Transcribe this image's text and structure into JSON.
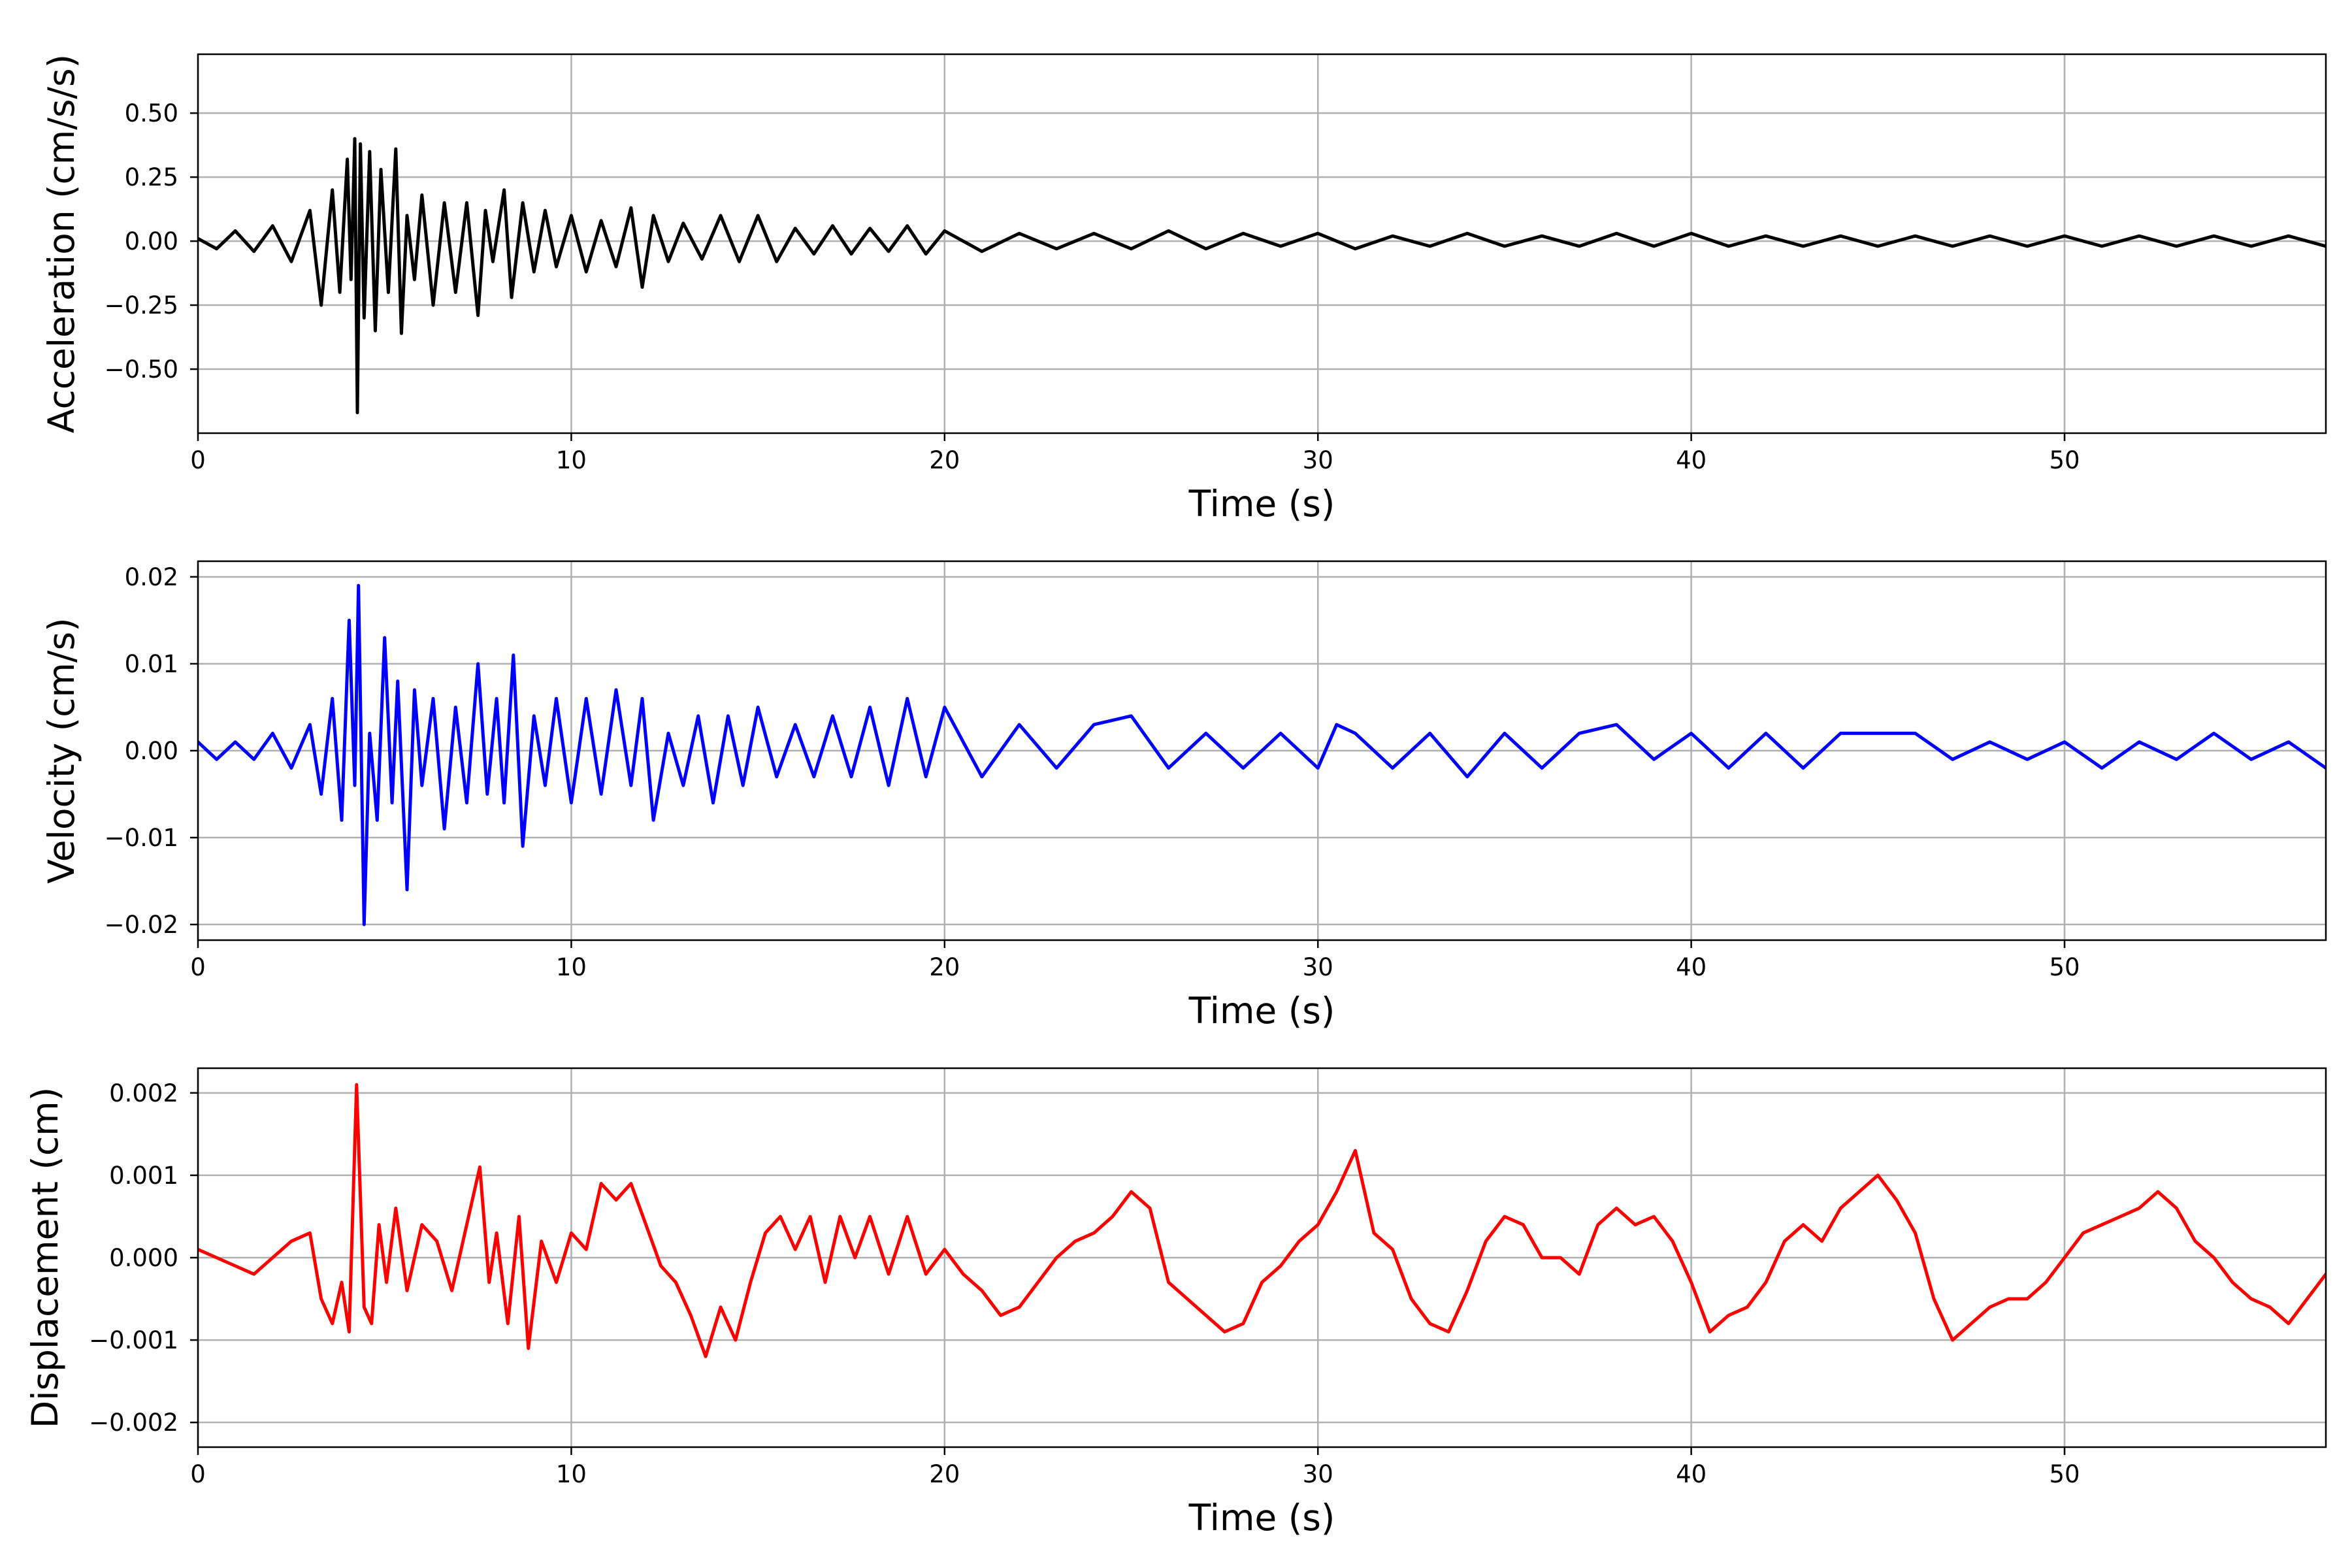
{
  "chart_data": [
    {
      "type": "line",
      "xlabel": "Time (s)",
      "ylabel": "Acceleration (cm/s/s)",
      "xlim": [
        0,
        57
      ],
      "ylim": [
        -0.75,
        0.73
      ],
      "xticks": [
        "0",
        "10",
        "20",
        "30",
        "40",
        "50"
      ],
      "yticks": [
        "0.50",
        "0.25",
        "0.00",
        "−0.25",
        "−0.50"
      ],
      "ytick_values": [
        0.5,
        0.25,
        0.0,
        -0.25,
        -0.5
      ],
      "grid": true,
      "color": "#000000",
      "series": [
        {
          "x": [
            0,
            0.5,
            1,
            1.5,
            2,
            2.5,
            3,
            3.3,
            3.6,
            3.8,
            4.0,
            4.1,
            4.2,
            4.27,
            4.35,
            4.45,
            4.6,
            4.75,
            4.9,
            5.1,
            5.3,
            5.45,
            5.6,
            5.8,
            6.0,
            6.3,
            6.6,
            6.9,
            7.2,
            7.5,
            7.7,
            7.9,
            8.2,
            8.4,
            8.7,
            9.0,
            9.3,
            9.6,
            10.0,
            10.4,
            10.8,
            11.2,
            11.6,
            11.9,
            12.2,
            12.6,
            13.0,
            13.5,
            14.0,
            14.5,
            15.0,
            15.5,
            16.0,
            16.5,
            17.0,
            17.5,
            18.0,
            18.5,
            19.0,
            19.5,
            20.0,
            21,
            22,
            23,
            24,
            25,
            26,
            27,
            28,
            29,
            30,
            31,
            32,
            33,
            34,
            35,
            36,
            37,
            38,
            39,
            40,
            41,
            42,
            43,
            44,
            45,
            46,
            47,
            48,
            49,
            50,
            51,
            52,
            53,
            54,
            55,
            56,
            57
          ],
          "y": [
            0.01,
            -0.03,
            0.04,
            -0.04,
            0.06,
            -0.08,
            0.12,
            -0.25,
            0.2,
            -0.2,
            0.32,
            -0.15,
            0.4,
            -0.67,
            0.38,
            -0.3,
            0.35,
            -0.35,
            0.28,
            -0.2,
            0.36,
            -0.36,
            0.1,
            -0.15,
            0.18,
            -0.25,
            0.15,
            -0.2,
            0.15,
            -0.29,
            0.12,
            -0.08,
            0.2,
            -0.22,
            0.15,
            -0.12,
            0.12,
            -0.1,
            0.1,
            -0.12,
            0.08,
            -0.1,
            0.13,
            -0.18,
            0.1,
            -0.08,
            0.07,
            -0.07,
            0.1,
            -0.08,
            0.1,
            -0.08,
            0.05,
            -0.05,
            0.06,
            -0.05,
            0.05,
            -0.04,
            0.06,
            -0.05,
            0.04,
            -0.04,
            0.03,
            -0.03,
            0.03,
            -0.03,
            0.04,
            -0.03,
            0.03,
            -0.02,
            0.03,
            -0.03,
            0.02,
            -0.02,
            0.03,
            -0.02,
            0.02,
            -0.02,
            0.03,
            -0.02,
            0.03,
            -0.02,
            0.02,
            -0.02,
            0.02,
            -0.02,
            0.02,
            -0.02,
            0.02,
            -0.02,
            0.02,
            -0.02,
            0.02,
            -0.02,
            0.02,
            -0.02,
            0.02,
            -0.02
          ]
        }
      ]
    },
    {
      "type": "line",
      "xlabel": "Time (s)",
      "ylabel": "Velocity (cm/s)",
      "xlim": [
        0,
        57
      ],
      "ylim": [
        -0.0218,
        0.0218
      ],
      "xticks": [
        "0",
        "10",
        "20",
        "30",
        "40",
        "50"
      ],
      "yticks": [
        "0.02",
        "0.01",
        "0.00",
        "−0.01",
        "−0.02"
      ],
      "ytick_values": [
        0.02,
        0.01,
        0.0,
        -0.01,
        -0.02
      ],
      "grid": true,
      "color": "#0000ff",
      "series": [
        {
          "x": [
            0,
            0.5,
            1,
            1.5,
            2,
            2.5,
            3,
            3.3,
            3.6,
            3.85,
            4.05,
            4.2,
            4.3,
            4.45,
            4.6,
            4.8,
            5.0,
            5.2,
            5.35,
            5.6,
            5.8,
            6.0,
            6.3,
            6.6,
            6.9,
            7.2,
            7.5,
            7.75,
            8.0,
            8.2,
            8.45,
            8.7,
            9.0,
            9.3,
            9.6,
            10.0,
            10.4,
            10.8,
            11.2,
            11.6,
            11.9,
            12.2,
            12.6,
            13.0,
            13.4,
            13.8,
            14.2,
            14.6,
            15.0,
            15.5,
            16.0,
            16.5,
            17.0,
            17.5,
            18.0,
            18.5,
            19.0,
            19.5,
            20.0,
            21,
            22,
            23,
            24,
            25,
            26,
            27,
            28,
            29,
            30,
            30.5,
            31,
            32,
            33,
            34,
            35,
            36,
            37,
            38,
            39,
            40,
            41,
            42,
            43,
            44,
            45,
            46,
            47,
            48,
            49,
            50,
            51,
            52,
            53,
            54,
            55,
            56,
            57
          ],
          "y": [
            0.001,
            -0.001,
            0.001,
            -0.001,
            0.002,
            -0.002,
            0.003,
            -0.005,
            0.006,
            -0.008,
            0.015,
            -0.004,
            0.019,
            -0.02,
            0.002,
            -0.008,
            0.013,
            -0.006,
            0.008,
            -0.016,
            0.007,
            -0.004,
            0.006,
            -0.009,
            0.005,
            -0.006,
            0.01,
            -0.005,
            0.006,
            -0.006,
            0.011,
            -0.011,
            0.004,
            -0.004,
            0.006,
            -0.006,
            0.006,
            -0.005,
            0.007,
            -0.004,
            0.006,
            -0.008,
            0.002,
            -0.004,
            0.004,
            -0.006,
            0.004,
            -0.004,
            0.005,
            -0.003,
            0.003,
            -0.003,
            0.004,
            -0.003,
            0.005,
            -0.004,
            0.006,
            -0.003,
            0.005,
            -0.003,
            0.003,
            -0.002,
            0.003,
            0.004,
            -0.002,
            0.002,
            -0.002,
            0.002,
            -0.002,
            0.003,
            0.002,
            -0.002,
            0.002,
            -0.003,
            0.002,
            -0.002,
            0.002,
            0.003,
            -0.001,
            0.002,
            -0.002,
            0.002,
            -0.002,
            0.002,
            0.002,
            0.002,
            -0.001,
            0.001,
            -0.001,
            0.001,
            -0.002,
            0.001,
            -0.001,
            0.002,
            -0.001,
            0.001,
            -0.002
          ]
        }
      ]
    },
    {
      "type": "line",
      "xlabel": "Time (s)",
      "ylabel": "Displacement (cm)",
      "xlim": [
        0,
        57
      ],
      "ylim": [
        -0.0023,
        0.0023
      ],
      "xticks": [
        "0",
        "10",
        "20",
        "30",
        "40",
        "50"
      ],
      "yticks": [
        "0.002",
        "0.001",
        "0.000",
        "−0.001",
        "−0.002"
      ],
      "ytick_values": [
        0.002,
        0.001,
        0.0,
        -0.001,
        -0.002
      ],
      "grid": true,
      "color": "#ff0000",
      "series": [
        {
          "x": [
            0,
            0.5,
            1,
            1.5,
            2,
            2.5,
            3,
            3.3,
            3.6,
            3.85,
            4.05,
            4.25,
            4.45,
            4.65,
            4.85,
            5.05,
            5.3,
            5.6,
            6.0,
            6.4,
            6.8,
            7.2,
            7.55,
            7.8,
            8.0,
            8.3,
            8.6,
            8.85,
            9.2,
            9.6,
            10.0,
            10.4,
            10.8,
            11.2,
            11.6,
            12.0,
            12.4,
            12.8,
            13.2,
            13.6,
            14.0,
            14.4,
            14.8,
            15.2,
            15.6,
            16.0,
            16.4,
            16.8,
            17.2,
            17.6,
            18.0,
            18.5,
            19.0,
            19.5,
            20.0,
            20.5,
            21.0,
            21.5,
            22.0,
            22.5,
            23.0,
            23.5,
            24.0,
            24.5,
            25.0,
            25.5,
            26.0,
            26.5,
            27.0,
            27.5,
            28.0,
            28.5,
            29.0,
            29.5,
            30.0,
            30.5,
            31.0,
            31.5,
            32.0,
            32.5,
            33.0,
            33.5,
            34.0,
            34.5,
            35.0,
            35.5,
            36.0,
            36.5,
            37.0,
            37.5,
            38.0,
            38.5,
            39.0,
            39.5,
            40.0,
            40.5,
            41.0,
            41.5,
            42.0,
            42.5,
            43.0,
            43.5,
            44.0,
            44.5,
            45.0,
            45.5,
            46.0,
            46.5,
            47.0,
            47.5,
            48.0,
            48.5,
            49.0,
            49.5,
            50.0,
            50.5,
            51.0,
            51.5,
            52.0,
            52.5,
            53.0,
            53.5,
            54.0,
            54.5,
            55.0,
            55.5,
            56.0,
            56.5,
            57.0
          ],
          "y": [
            0.0001,
            0.0,
            -0.0001,
            -0.0002,
            0.0,
            0.0002,
            0.0003,
            -0.0005,
            -0.0008,
            -0.0003,
            -0.0009,
            0.0021,
            -0.0006,
            -0.0008,
            0.0004,
            -0.0003,
            0.0006,
            -0.0004,
            0.0004,
            0.0002,
            -0.0004,
            0.0004,
            0.0011,
            -0.0003,
            0.0003,
            -0.0008,
            0.0005,
            -0.0011,
            0.0002,
            -0.0003,
            0.0003,
            0.0001,
            0.0009,
            0.0007,
            0.0009,
            0.0004,
            -0.0001,
            -0.0003,
            -0.0007,
            -0.0012,
            -0.0006,
            -0.001,
            -0.0003,
            0.0003,
            0.0005,
            0.0001,
            0.0005,
            -0.0003,
            0.0005,
            0.0,
            0.0005,
            -0.0002,
            0.0005,
            -0.0002,
            0.0001,
            -0.0002,
            -0.0004,
            -0.0007,
            -0.0006,
            -0.0003,
            0.0,
            0.0002,
            0.0003,
            0.0005,
            0.0008,
            0.0006,
            -0.0003,
            -0.0005,
            -0.0007,
            -0.0009,
            -0.0008,
            -0.0003,
            -0.0001,
            0.0002,
            0.0004,
            0.0008,
            0.0013,
            0.0003,
            0.0001,
            -0.0005,
            -0.0008,
            -0.0009,
            -0.0004,
            0.0002,
            0.0005,
            0.0004,
            0.0,
            0.0,
            -0.0002,
            0.0004,
            0.0006,
            0.0004,
            0.0005,
            0.0002,
            -0.0003,
            -0.0009,
            -0.0007,
            -0.0006,
            -0.0003,
            0.0002,
            0.0004,
            0.0002,
            0.0006,
            0.0008,
            0.001,
            0.0007,
            0.0003,
            -0.0005,
            -0.001,
            -0.0008,
            -0.0006,
            -0.0005,
            -0.0005,
            -0.0003,
            0.0,
            0.0003,
            0.0004,
            0.0005,
            0.0006,
            0.0008,
            0.0006,
            0.0002,
            0.0,
            -0.0003,
            -0.0005,
            -0.0006,
            -0.0008,
            -0.0005,
            -0.0002
          ]
        }
      ]
    }
  ]
}
